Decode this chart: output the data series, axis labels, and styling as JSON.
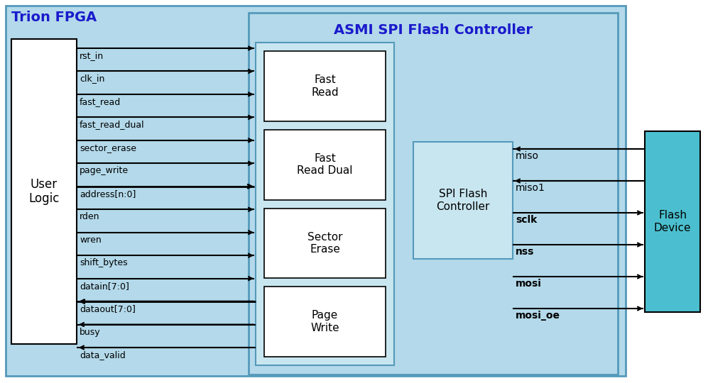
{
  "trion_label": "Trion FPGA",
  "asmi_label": "ASMI SPI Flash Controller",
  "user_logic_label": "User\nLogic",
  "spi_controller_label": "SPI Flash\nController",
  "flash_device_label": "Flash\nDevice",
  "input_signals": [
    "rst_in",
    "clk_in",
    "fast_read",
    "fast_read_dual",
    "sector_erase",
    "page_write",
    "address[n:0]",
    "rden",
    "wren",
    "shift_bytes",
    "datain[7:0]"
  ],
  "output_signals": [
    "dataout[7:0]",
    "busy",
    "data_valid"
  ],
  "right_signals": [
    "miso",
    "miso1",
    "sclk",
    "nss",
    "mosi",
    "mosi_oe"
  ],
  "right_signal_directions": [
    "in",
    "in",
    "out",
    "out",
    "out",
    "out"
  ],
  "right_signal_bold": [
    false,
    false,
    true,
    true,
    true,
    true
  ],
  "sub_blocks": [
    "Fast\nRead",
    "Fast\nRead Dual",
    "Sector\nErase",
    "Page\nWrite"
  ],
  "light_blue": "#b3d9ea",
  "light_blue2": "#c8e6f0",
  "teal": "#4bbfcf",
  "blue_border": "#5599bb",
  "trion_title_color": "#1a1acc",
  "asmi_title_color": "#1a1acc",
  "fig_w": 9.97,
  "fig_h": 5.4,
  "dpi": 100
}
